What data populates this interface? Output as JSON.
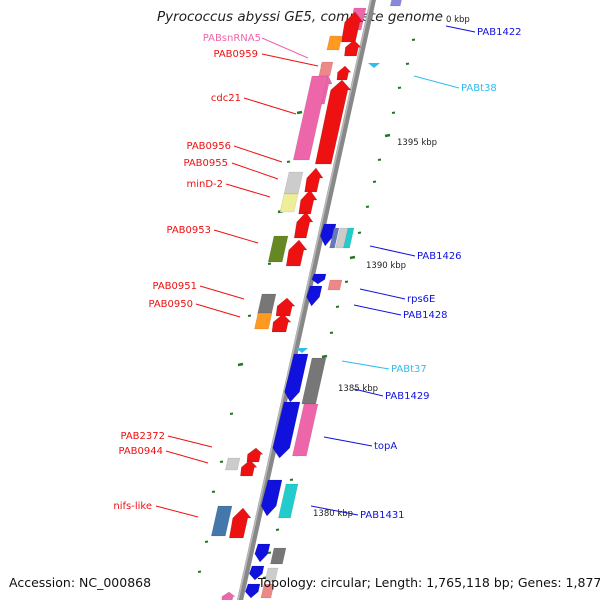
{
  "title": "Pyrococcus abyssi GE5, complete genome",
  "footer": {
    "accession": "Accession: NC_000868",
    "topology": "Topology: circular; Length: 1,765,118 bp; Genes: 1,877"
  },
  "colors": {
    "red": "#ee1111",
    "blue": "#1111dd",
    "pink": "#ee66aa",
    "cyan": "#22cccc",
    "orange": "#ff9922",
    "green": "#668822",
    "gray": "#777777",
    "lightgray": "#cccccc",
    "yellow": "#eeee99",
    "steelblue": "#4477aa",
    "salmon": "#ee8888",
    "sky": "#33bbee",
    "ruler": "#227722",
    "axis": "#888888"
  },
  "ruler_labels": [
    {
      "text": "0 kbp"
    },
    {
      "text": "1395 kbp"
    },
    {
      "text": "1390 kbp"
    },
    {
      "text": "1385 kbp"
    },
    {
      "text": "1380 kbp"
    }
  ],
  "left_labels": [
    {
      "text": "PABsnRNA5",
      "color": "pink"
    },
    {
      "text": "PAB0959",
      "color": "red"
    },
    {
      "text": "cdc21",
      "color": "red"
    },
    {
      "text": "PAB0956",
      "color": "red"
    },
    {
      "text": "PAB0955",
      "color": "red"
    },
    {
      "text": "minD-2",
      "color": "red"
    },
    {
      "text": "PAB0953",
      "color": "red"
    },
    {
      "text": "PAB0951",
      "color": "red"
    },
    {
      "text": "PAB0950",
      "color": "red"
    },
    {
      "text": "PAB2372",
      "color": "red"
    },
    {
      "text": "PAB0944",
      "color": "red"
    },
    {
      "text": "nifs-like",
      "color": "red"
    }
  ],
  "right_labels": [
    {
      "text": "PAB1422",
      "color": "blue"
    },
    {
      "text": "PABt38",
      "color": "sky"
    },
    {
      "text": "PAB1426",
      "color": "blue"
    },
    {
      "text": "rps6E",
      "color": "blue"
    },
    {
      "text": "PAB1428",
      "color": "blue"
    },
    {
      "text": "PABt37",
      "color": "sky"
    },
    {
      "text": "PAB1429",
      "color": "blue"
    },
    {
      "text": "topA",
      "color": "blue"
    },
    {
      "text": "PAB1431",
      "color": "blue"
    }
  ]
}
